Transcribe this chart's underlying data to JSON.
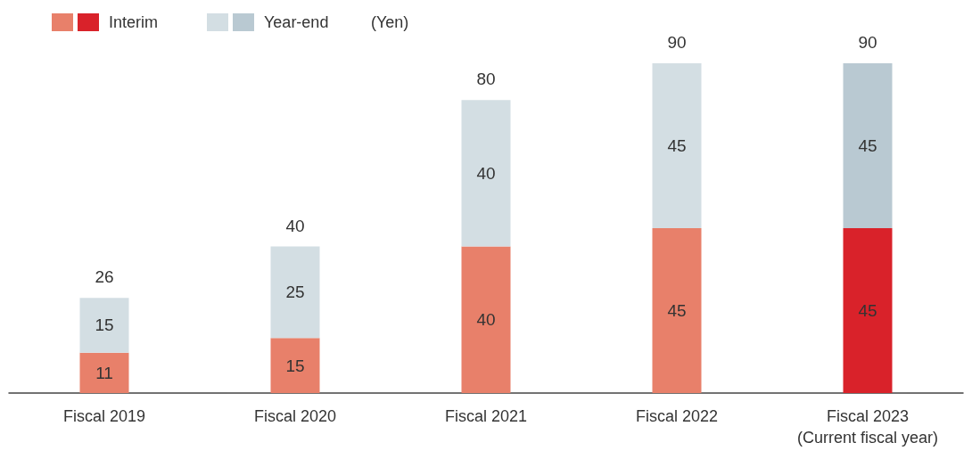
{
  "chart_data": {
    "type": "bar",
    "stacked": true,
    "ylabel": "(Yen)",
    "categories": [
      "Fiscal 2019",
      "Fiscal 2020",
      "Fiscal 2021",
      "Fiscal 2022",
      "Fiscal 2023\n(Current fiscal year)"
    ],
    "series": [
      {
        "name": "Interim",
        "colors": [
          "#e8806a",
          "#e8806a",
          "#e8806a",
          "#e8806a",
          "#d9222a"
        ],
        "values": [
          11,
          15,
          40,
          45,
          45
        ]
      },
      {
        "name": "Year-end",
        "colors": [
          "#d3dee3",
          "#d3dee3",
          "#d3dee3",
          "#d3dee3",
          "#b9c9d2"
        ],
        "values": [
          15,
          25,
          40,
          45,
          45
        ]
      }
    ],
    "totals": [
      "26",
      "40",
      "80",
      "90",
      "90"
    ],
    "data_labels": true,
    "legend": "top left"
  }
}
